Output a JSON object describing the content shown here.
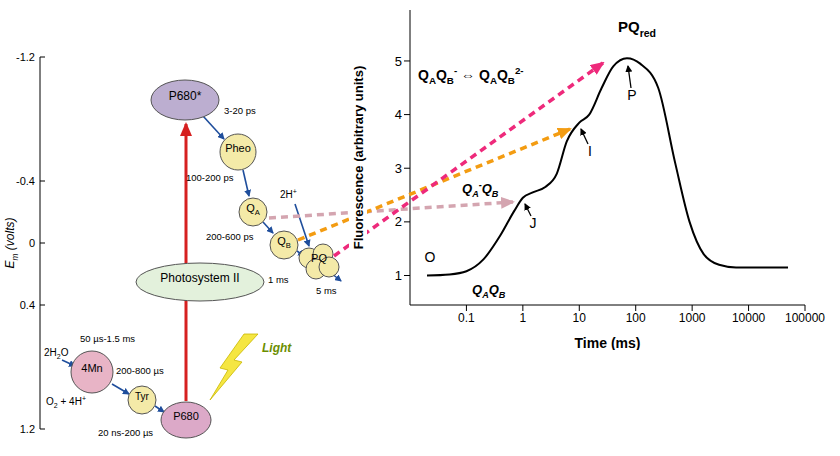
{
  "diagram": {
    "axis": {
      "title": [
        "E",
        {
          "sub": "m"
        },
        " (volts)"
      ],
      "ylim": [
        -1.2,
        1.2
      ],
      "yticks": [
        -1.2,
        -0.4,
        0,
        0.4,
        1.2
      ]
    },
    "nodes": [
      [
        "P680*"
      ],
      [
        "Pheo"
      ],
      [
        "Q",
        {
          "sub": "A"
        }
      ],
      [
        "Q",
        {
          "sub": "B"
        }
      ],
      [
        "PQ"
      ],
      [
        "Photosystem II"
      ],
      [
        "4Mn"
      ],
      [
        "Tyr"
      ],
      [
        "P680"
      ]
    ],
    "labels": [
      [
        "3-20 ps"
      ],
      [
        "100-200 ps"
      ],
      [
        "200-600 ps"
      ],
      [
        "1 ms"
      ],
      [
        "5 ms"
      ],
      [
        "2H",
        {
          "sup": "+"
        }
      ],
      [
        "2H",
        {
          "sub": "2"
        },
        "O"
      ],
      [
        "50 µs-1.5 ms"
      ],
      [
        "200-800 µs"
      ],
      [
        "O",
        {
          "sub": "2"
        },
        " + 4H",
        {
          "sup": "+"
        }
      ],
      [
        "20 ns-200 µs"
      ],
      [
        "Light"
      ]
    ]
  },
  "chart_data": {
    "type": "line",
    "x": [
      0.02,
      0.05,
      0.1,
      0.2,
      0.4,
      0.7,
      1,
      1.5,
      2.5,
      4,
      6,
      10,
      15,
      25,
      40,
      70,
      120,
      250,
      500,
      900,
      1600,
      3000,
      6000,
      15000,
      50000
    ],
    "values": [
      1.0,
      1.02,
      1.08,
      1.3,
      1.75,
      2.2,
      2.45,
      2.55,
      2.65,
      2.9,
      3.5,
      3.85,
      4.0,
      4.5,
      4.9,
      5.05,
      4.95,
      4.5,
      3.1,
      2.0,
      1.4,
      1.2,
      1.15,
      1.15,
      1.15
    ],
    "color": "#000000",
    "xlabel": "Time (ms)",
    "ylabel": "Fluorescence (arbitrary units)",
    "log": "x",
    "grid": false,
    "xlim": [
      0.01,
      100000
    ],
    "xticks": [
      0.1,
      1,
      10,
      100,
      1000,
      10000,
      100000
    ],
    "ylim": [
      0.45,
      5.95
    ],
    "yticks": [
      1,
      2,
      3,
      4,
      5
    ],
    "annotations": [
      [
        "O"
      ],
      [
        "J"
      ],
      [
        "I"
      ],
      [
        "P"
      ],
      [
        "Q",
        {
          "sub": "A"
        },
        "Q",
        {
          "sub": "B"
        }
      ],
      [
        "Q",
        {
          "sub": "A"
        },
        {
          "sup": "-"
        },
        "Q",
        {
          "sub": "B"
        }
      ],
      [
        "Q",
        {
          "sub": "A"
        },
        "Q",
        {
          "sub": "B"
        },
        {
          "sup": "-"
        },
        " ⇔ Q",
        {
          "sub": "A"
        },
        "Q",
        {
          "sub": "B"
        },
        {
          "sup": "2-"
        }
      ],
      [
        "PQ",
        {
          "sub": "red"
        }
      ]
    ]
  }
}
